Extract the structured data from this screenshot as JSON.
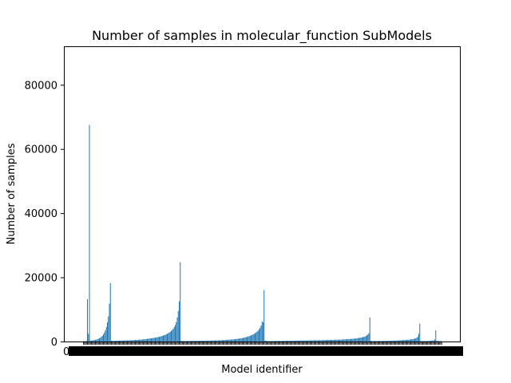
{
  "chart_data": {
    "type": "bar",
    "title": "Number of samples in molecular_function SubModels",
    "xlabel": "Model identifier",
    "ylabel": "Number of samples",
    "ylim": [
      0,
      92000
    ],
    "yticks": [
      0,
      20000,
      40000,
      60000,
      80000
    ],
    "ytick_labels": [
      "0",
      "20000",
      "40000",
      "60000",
      "80000"
    ],
    "xtick_labels_visible": [
      "0",
      "0"
    ],
    "grid": false,
    "legend": "none",
    "bar_color": "#1f77b4",
    "series": [
      {
        "values": [
          150,
          120,
          130,
          160,
          13200,
          2400,
          67500,
          300,
          280,
          350,
          400,
          450,
          520,
          600,
          700,
          850,
          1000,
          1200,
          1500,
          1800,
          2200,
          2800,
          3500,
          4500,
          6000,
          7800,
          11800,
          18200,
          250,
          180,
          200,
          220,
          230,
          240,
          260,
          270,
          280,
          290,
          300,
          310,
          320,
          330,
          340,
          350,
          360,
          370,
          380,
          390,
          400,
          420,
          440,
          460,
          480,
          500,
          520,
          540,
          560,
          580,
          600,
          630,
          660,
          700,
          740,
          780,
          820,
          860,
          900,
          950,
          1000,
          1050,
          1100,
          1150,
          1200,
          1260,
          1320,
          1400,
          1480,
          1560,
          1650,
          1750,
          1860,
          1980,
          2100,
          2250,
          2400,
          2600,
          2800,
          3000,
          3300,
          3600,
          4000,
          4500,
          5100,
          6000,
          7500,
          9500,
          12500,
          24700,
          200,
          180,
          170,
          160,
          160,
          165,
          170,
          175,
          180,
          185,
          190,
          195,
          200,
          205,
          210,
          215,
          220,
          225,
          230,
          235,
          240,
          245,
          250,
          255,
          260,
          265,
          270,
          275,
          280,
          290,
          300,
          310,
          320,
          330,
          340,
          350,
          360,
          370,
          380,
          390,
          400,
          420,
          440,
          460,
          480,
          500,
          520,
          540,
          560,
          580,
          600,
          630,
          660,
          700,
          740,
          780,
          820,
          860,
          900,
          950,
          1000,
          1060,
          1120,
          1200,
          1280,
          1360,
          1450,
          1550,
          1650,
          1780,
          1900,
          2050,
          2200,
          2400,
          2600,
          2850,
          3100,
          3400,
          3800,
          4300,
          5000,
          6200,
          6000,
          16000,
          300,
          200,
          150,
          140,
          140,
          145,
          150,
          155,
          160,
          165,
          170,
          175,
          180,
          185,
          190,
          195,
          200,
          205,
          210,
          215,
          220,
          225,
          230,
          235,
          240,
          245,
          250,
          255,
          260,
          265,
          270,
          275,
          280,
          285,
          290,
          295,
          300,
          305,
          310,
          315,
          320,
          325,
          330,
          335,
          340,
          345,
          350,
          355,
          360,
          365,
          370,
          375,
          380,
          385,
          390,
          395,
          400,
          410,
          420,
          430,
          440,
          450,
          460,
          470,
          480,
          490,
          500,
          510,
          520,
          530,
          540,
          550,
          560,
          570,
          580,
          590,
          600,
          620,
          640,
          660,
          680,
          700,
          720,
          740,
          760,
          780,
          800,
          830,
          860,
          890,
          920,
          960,
          1000,
          1050,
          1100,
          1150,
          1200,
          1280,
          1360,
          1450,
          1550,
          1700,
          1900,
          2200,
          2600,
          7500,
          200,
          150,
          140,
          140,
          145,
          150,
          155,
          160,
          165,
          170,
          175,
          180,
          185,
          190,
          195,
          200,
          210,
          220,
          230,
          240,
          250,
          260,
          270,
          280,
          290,
          300,
          315,
          330,
          345,
          360,
          380,
          400,
          420,
          440,
          460,
          480,
          500,
          530,
          560,
          600,
          650,
          700,
          760,
          830,
          900,
          1000,
          1200,
          1500,
          2400,
          5600,
          180,
          150,
          140,
          140,
          150,
          160,
          170,
          180,
          200,
          220,
          240,
          260,
          300,
          400,
          600,
          3500,
          250,
          200,
          180,
          160,
          150,
          140
        ]
      }
    ]
  }
}
